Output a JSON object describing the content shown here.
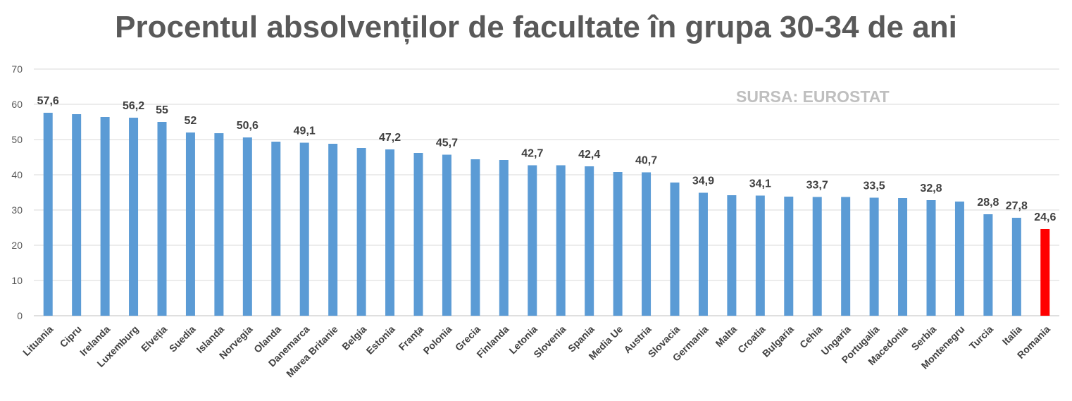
{
  "chart_data": {
    "type": "bar",
    "title": "Procentul absolvenților de facultate în grupa 30-34 de ani",
    "annotation": "SURSA: EUROSTAT",
    "categories": [
      "Lituania",
      "Cipru",
      "Irelanda",
      "Luxemburg",
      "Elveția",
      "Suedia",
      "Islanda",
      "Norvegia",
      "Olanda",
      "Danemarca",
      "Marea Britanie",
      "Belgia",
      "Estonia",
      "Franța",
      "Polonia",
      "Grecia",
      "Finlanda",
      "Letonia",
      "Slovenia",
      "Spania",
      "Media Ue",
      "Austria",
      "Slovacia",
      "Germania",
      "Malta",
      "Croatia",
      "Bulgaria",
      "Cehia",
      "Ungaria",
      "Portugalia",
      "Macedonia",
      "Serbia",
      "Montenegru",
      "Turcia",
      "Italia",
      "Romania"
    ],
    "values": [
      57.6,
      57.2,
      56.4,
      56.2,
      55.0,
      52.0,
      51.8,
      50.6,
      49.4,
      49.1,
      48.8,
      47.6,
      47.2,
      46.2,
      45.7,
      44.4,
      44.2,
      42.7,
      42.7,
      42.4,
      40.8,
      40.7,
      37.8,
      34.9,
      34.2,
      34.1,
      33.8,
      33.7,
      33.7,
      33.5,
      33.4,
      32.8,
      32.4,
      28.8,
      27.8,
      24.6
    ],
    "data_labels": {
      "0": "57,6",
      "3": "56,2",
      "4": "55",
      "5": "52",
      "7": "50,6",
      "9": "49,1",
      "12": "47,2",
      "14": "45,7",
      "17": "42,7",
      "19": "42,4",
      "21": "40,7",
      "23": "34,9",
      "25": "34,1",
      "27": "33,7",
      "29": "33,5",
      "31": "32,8",
      "33": "28,8",
      "34": "27,8",
      "35": "24,6"
    },
    "ylim": [
      0,
      70
    ],
    "yticks": [
      0,
      10,
      20,
      30,
      40,
      50,
      60,
      70
    ],
    "grid": true,
    "colors": {
      "bar": "#5b9bd5",
      "highlight": "#ff0000",
      "grid": "#d9d9d9"
    },
    "highlight_index": 35,
    "xlabel": "",
    "ylabel": ""
  }
}
